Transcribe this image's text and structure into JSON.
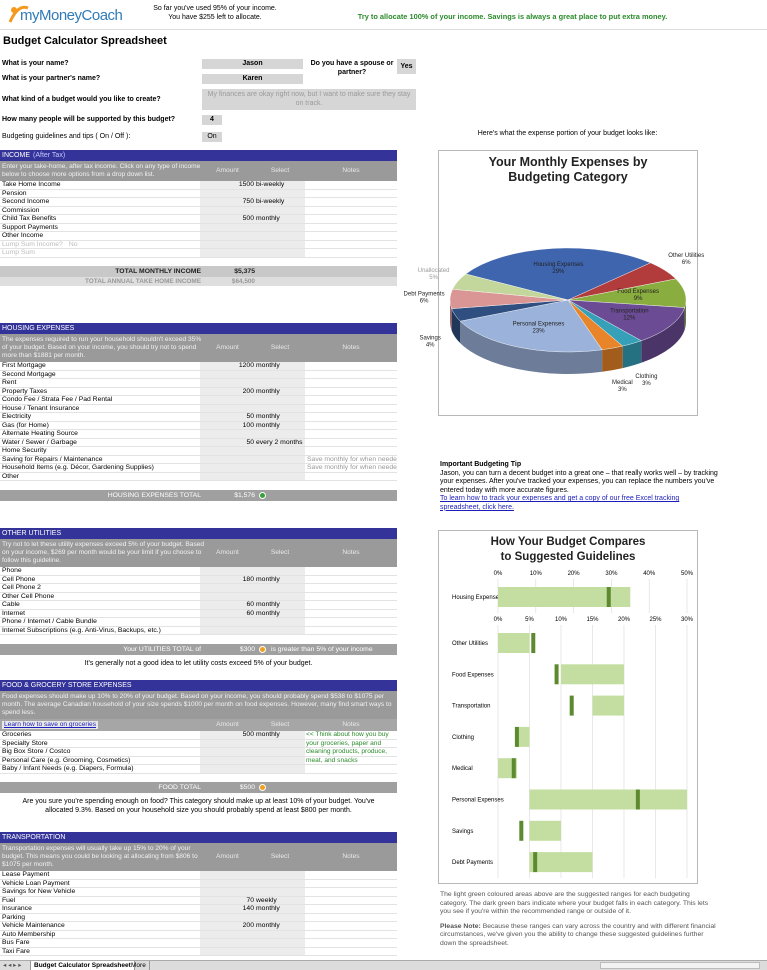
{
  "header": {
    "logo": "myMoneyCoach",
    "status": [
      "So far you've used 95% of your income.",
      "You have $255 left to allocate."
    ],
    "advice": "Try to allocate 100% of your income. Savings is always a great place to put extra money."
  },
  "title": "Budget Calculator Spreadsheet",
  "questions": [
    {
      "label": "What is your name?",
      "answer": "Jason"
    },
    {
      "label": "What is your partner's name?",
      "answer": "Karen"
    },
    {
      "label": "Do you have a spouse or partner?",
      "answer": "Yes"
    },
    {
      "label": "What kind of a budget would you like to create?",
      "answer": "My finances are okay right now, but I want to make sure they stay on track."
    },
    {
      "label": "How many people will be supported by this budget?",
      "answer": 4
    },
    {
      "label": "Budgeting guidelines and tips ( On / Off ):",
      "answer": "On"
    }
  ],
  "sections": [
    {
      "title": "INCOME",
      "title_note": "(After Tax)",
      "description": "Enter your take-home, after tax income. Click on any type of income below to choose more options from a drop down list.",
      "columns": [
        "Amount",
        "Select",
        "Notes"
      ],
      "rows": [
        {
          "label": "Take Home Income",
          "amount": 1500,
          "select": "bi-weekly"
        },
        {
          "label": "Pension"
        },
        {
          "label": "Second Income",
          "amount": 750,
          "select": "bi-weekly"
        },
        {
          "label": "Commission"
        },
        {
          "label": "Child Tax Benefits",
          "amount": 500,
          "select": "monthly"
        },
        {
          "label": "Support Payments"
        },
        {
          "label": "Other Income"
        }
      ],
      "extra_rows": [
        {
          "label": "Lump Sum Income?",
          "answer": "No"
        },
        {
          "label": "Lump Sum"
        }
      ],
      "total": {
        "label": "TOTAL MONTHLY INCOME",
        "value": "$5,375"
      },
      "annual": {
        "label": "TOTAL ANNUAL TAKE HOME INCOME",
        "value": "$64,500"
      }
    },
    {
      "title": "HOUSING EXPENSES",
      "description": "The expenses required to run your household shouldn't exceed 35% of your budget. Based on your income, you should try not to spend more than $1881 per month.",
      "columns": [
        "Amount",
        "Select",
        "Notes"
      ],
      "rows": [
        {
          "label": "First Mortgage",
          "amount": 1200,
          "select": "monthly"
        },
        {
          "label": "Second Mortgage"
        },
        {
          "label": "Rent"
        },
        {
          "label": "Property Taxes",
          "amount": 200,
          "select": "monthly"
        },
        {
          "label": "Condo Fee / Strata Fee / Pad Rental"
        },
        {
          "label": "House / Tenant Insurance"
        },
        {
          "label": "Electricity",
          "amount": 50,
          "select": "monthly"
        },
        {
          "label": "Gas (for Home)",
          "amount": 100,
          "select": "monthly"
        },
        {
          "label": "Alternate Heating Source"
        },
        {
          "label": "Water / Sewer / Garbage",
          "amount": 50,
          "select": "every 2 months"
        },
        {
          "label": "Home Security"
        },
        {
          "label": "Saving for Repairs / Maintenance",
          "note": "Save monthly for when needed"
        },
        {
          "label": "Household Items (e.g. Décor, Gardening Supplies)",
          "note": "Save monthly for when needed"
        },
        {
          "label": "Other"
        }
      ],
      "total": {
        "label": "HOUSING EXPENSES TOTAL",
        "value": "$1,576",
        "status": "ok"
      }
    },
    {
      "title": "OTHER UTILITIES",
      "description": "Try not to let these utility expenses exceed 5% of your budget. Based on your income, $269 per month would be your limit if you choose to follow this guideline.",
      "columns": [
        "Amount",
        "Select",
        "Notes"
      ],
      "rows": [
        {
          "label": "Phone"
        },
        {
          "label": "Cell Phone",
          "amount": 180,
          "select": "monthly"
        },
        {
          "label": "Cell Phone 2"
        },
        {
          "label": "Other Cell Phone"
        },
        {
          "label": "Cable",
          "amount": 60,
          "select": "monthly"
        },
        {
          "label": "Internet",
          "amount": 60,
          "select": "monthly"
        },
        {
          "label": "Phone / Internet / Cable Bundle"
        },
        {
          "label": "Internet Subscriptions (e.g. Anti-Virus, Backups, etc.)"
        }
      ],
      "total": {
        "label": "Your UTILITIES TOTAL of",
        "value": "$300",
        "status": "warning",
        "comment": "is greater than 5% of your income"
      },
      "after": "It's generally not a good idea to let utility costs exceed 5% of your budget."
    },
    {
      "title": "FOOD & GROCERY STORE EXPENSES",
      "description": "Food expenses should make up 10% to 20% of your budget. Based on your income, you should probably spend $538 to $1075 per month. The average Canadian household of your size spends $1000 per month on food expenses. However, many find smart ways to spend less.",
      "link": "Learn how to save on groceries",
      "columns": [
        "Amount",
        "Select",
        "Notes"
      ],
      "rows": [
        {
          "label": "Groceries",
          "amount": 500,
          "select": "monthly"
        },
        {
          "label": "Specialty Store"
        },
        {
          "label": "Big Box Store / Costco"
        },
        {
          "label": "Personal Care (e.g. Grooming, Cosmetics)"
        },
        {
          "label": "Baby / Infant Needs (e.g. Diapers, Formula)"
        }
      ],
      "side_note": "<< Think about how you buy your groceries, paper and cleaning products, produce, meat, and snacks",
      "total": {
        "label": "FOOD TOTAL",
        "value": "$500",
        "status": "warning"
      },
      "after": "Are you sure you're spending enough on food? This category should make up at least 10% of your budget. You've allocated 9.3%. Based on your household size you should probably spend at least $800 per month."
    },
    {
      "title": "TRANSPORTATION",
      "description": "Transportation expenses will usually take up 15% to 20% of your budget. This means you could be looking at allocating from $806 to $1075 per month.",
      "columns": [
        "Amount",
        "Select",
        "Notes"
      ],
      "rows": [
        {
          "label": "Lease Payment"
        },
        {
          "label": "Vehicle Loan Payment"
        },
        {
          "label": "Savings for New Vehicle"
        },
        {
          "label": "Fuel",
          "amount": 70,
          "select": "weekly"
        },
        {
          "label": "Insurance",
          "amount": 140,
          "select": "monthly"
        },
        {
          "label": "Parking"
        },
        {
          "label": "Vehicle Maintenance",
          "amount": 200,
          "select": "monthly"
        },
        {
          "label": "Auto Membership"
        },
        {
          "label": "Bus Fare"
        },
        {
          "label": "Taxi Fare"
        }
      ]
    }
  ],
  "expense_chart": {
    "type": "pie",
    "intro": "Here's what the expense portion of your budget looks like:",
    "title": "Your Monthly Expenses by Budgeting Category",
    "categories": [
      "Housing Expenses",
      "Other Utilities",
      "Food Expenses",
      "Transportation",
      "Clothing",
      "Medical",
      "Personal Expenses",
      "Savings",
      "Debt Payments",
      "Unallocated"
    ],
    "values": [
      29,
      6,
      9,
      12,
      3,
      3,
      23,
      4,
      6,
      5
    ],
    "value_labels": [
      "29%",
      "6%",
      "9%",
      "12%",
      "3%",
      "3%",
      "23%",
      "4%",
      "6%",
      "5%"
    ],
    "colors": [
      "#3f65ae",
      "#b23b3b",
      "#8aad3f",
      "#6b4c94",
      "#35a0b8",
      "#e8852a",
      "#9bb2da",
      "#2f4f80",
      "#d99694",
      "#c3d69b"
    ]
  },
  "tip": {
    "title": "Important Budgeting Tip",
    "text": "Jason, you can turn a decent budget into a great one – that really works well – by tracking your expenses. After you've tracked your expenses, you can replace the numbers you've entered today with more accurate figures.",
    "link": "To learn how to track your expenses and get a copy of our free Excel tracking spreadsheet, click here."
  },
  "guideline_chart": {
    "type": "range-bar",
    "title": "How Your Budget Compares to Suggested Guidelines",
    "range_color": "#c4dea2",
    "value_color": "#5d8a2e",
    "panels": [
      {
        "xlim": [
          0,
          50
        ],
        "xticks": [
          {
            "value": 0,
            "label": "0%"
          },
          {
            "value": 10,
            "label": "10%"
          },
          {
            "value": 20,
            "label": "20%"
          },
          {
            "value": 30,
            "label": "30%"
          },
          {
            "value": 40,
            "label": "40%"
          },
          {
            "value": 50,
            "label": "50%"
          }
        ],
        "categories": [
          "Housing Expenses"
        ],
        "ranges": [
          [
            0,
            35
          ]
        ],
        "values": [
          29.3
        ]
      },
      {
        "xlim": [
          0,
          30
        ],
        "xticks": [
          {
            "value": 0,
            "label": "0%"
          },
          {
            "value": 5,
            "label": "5%"
          },
          {
            "value": 10,
            "label": "10%"
          },
          {
            "value": 15,
            "label": "15%"
          },
          {
            "value": 20,
            "label": "20%"
          },
          {
            "value": 25,
            "label": "25%"
          },
          {
            "value": 30,
            "label": "30%"
          }
        ],
        "categories": [
          "Other Utilities",
          "Food Expenses",
          "Transportation",
          "Clothing",
          "Medical",
          "Personal Expenses",
          "Savings",
          "Debt Payments"
        ],
        "ranges": [
          [
            0,
            5
          ],
          [
            10,
            20
          ],
          [
            15,
            20
          ],
          [
            3,
            5
          ],
          [
            0,
            3
          ],
          [
            5,
            30
          ],
          [
            5,
            10
          ],
          [
            5,
            15
          ]
        ],
        "values": [
          5.6,
          9.3,
          11.7,
          3,
          2.5,
          22.2,
          3.7,
          5.9
        ]
      }
    ]
  },
  "guideline_notes": {
    "caption": "The light green coloured areas above are the suggested ranges for each budgeting category. The dark green bars indicate where your budget falls in each category. This lets you see if you're within the recommended range or outside of it.",
    "note_label": "Please Note:",
    "note": "Because these ranges can vary across the country and with different financial circumstances, we've given you the ability to change these suggested guidelines further down the spreadsheet."
  },
  "tabs": [
    "Budget Calculator Spreadsheet",
    "More"
  ]
}
